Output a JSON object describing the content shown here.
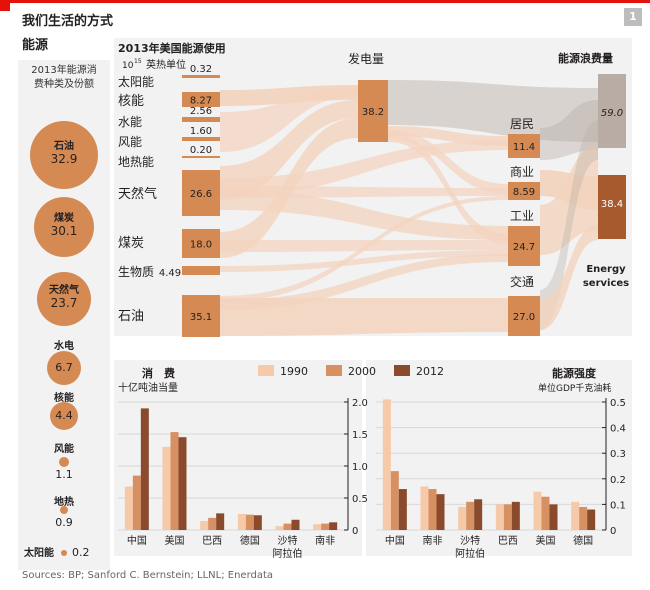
{
  "header": {
    "title_line1": "我们生活的方式",
    "title_line2": "能源",
    "page_number": "1"
  },
  "colors": {
    "accent_red": "#e3120b",
    "flow": "#f3d3bd",
    "box": "#d58a53",
    "year1990": "#f6c9a8",
    "year2000": "#d69062",
    "year2012": "#8a4a2c",
    "waste": "#b8aca4",
    "services": "#a65a2e"
  },
  "sidebar": {
    "heading_line1": "2013年能源消",
    "heading_line2": "费种类及份额",
    "items": [
      {
        "label": "石油",
        "value": "32.9"
      },
      {
        "label": "煤炭",
        "value": "30.1"
      },
      {
        "label": "天然气",
        "value": "23.7"
      },
      {
        "label": "水电",
        "value": "6.7"
      },
      {
        "label": "核能",
        "value": "4.4"
      },
      {
        "label": "风能",
        "value": "1.1"
      },
      {
        "label": "地热",
        "value": "0.9"
      },
      {
        "label": "太阳能",
        "value": "0.2"
      }
    ]
  },
  "sankey": {
    "title": "2013年美国能源使用",
    "unit_exp": "10",
    "unit_sup": "15",
    "unit_text": "英热单位",
    "sources": [
      {
        "label": "太阳能",
        "value": "0.32"
      },
      {
        "label": "核能",
        "value": "8.27"
      },
      {
        "label": "水能",
        "value": "2.56"
      },
      {
        "label": "风能",
        "value": "1.60"
      },
      {
        "label": "地热能",
        "value": "0.20"
      },
      {
        "label": "天然气",
        "value": "26.6"
      },
      {
        "label": "煤炭",
        "value": "18.0"
      },
      {
        "label": "生物质",
        "value": "4.49"
      },
      {
        "label": "石油",
        "value": "35.1"
      }
    ],
    "power_label": "发电量",
    "power_value": "38.2",
    "sectors": [
      {
        "label": "居民",
        "value": "11.4"
      },
      {
        "label": "商业",
        "value": "8.59"
      },
      {
        "label": "工业",
        "value": "24.7"
      },
      {
        "label": "交通",
        "value": "27.0"
      }
    ],
    "waste_label": "能源浪费量",
    "waste_value": "59.0",
    "services_value": "38.4",
    "services_label_1": "Energy",
    "services_label_2": "services"
  },
  "legend": [
    "1990",
    "2000",
    "2012"
  ],
  "chart_data": [
    {
      "type": "bar",
      "title": "消　费",
      "ylabel": "十亿吨油当量",
      "categories": [
        "中国",
        "美国",
        "巴西",
        "德国",
        "沙特阿拉伯",
        "南非"
      ],
      "category_lines": [
        [
          "中国"
        ],
        [
          "美国"
        ],
        [
          "巴西"
        ],
        [
          "德国"
        ],
        [
          "沙特",
          "阿拉伯"
        ],
        [
          "南非"
        ]
      ],
      "series": [
        {
          "name": "1990",
          "values": [
            0.68,
            1.3,
            0.14,
            0.25,
            0.06,
            0.09
          ]
        },
        {
          "name": "2000",
          "values": [
            0.85,
            1.53,
            0.19,
            0.24,
            0.1,
            0.1
          ]
        },
        {
          "name": "2012",
          "values": [
            1.9,
            1.45,
            0.26,
            0.23,
            0.16,
            0.12
          ]
        }
      ],
      "ylim": [
        0,
        2.0
      ],
      "yticks": [
        "0",
        "0.5",
        "1.0",
        "1.5",
        "2.0"
      ]
    },
    {
      "type": "bar",
      "title": "能源强度",
      "ylabel": "单位GDP千克油耗",
      "categories": [
        "中国",
        "南非",
        "沙特阿拉伯",
        "巴西",
        "美国",
        "德国"
      ],
      "category_lines": [
        [
          "中国"
        ],
        [
          "南非"
        ],
        [
          "沙特",
          "阿拉伯"
        ],
        [
          "巴西"
        ],
        [
          "美国"
        ],
        [
          "德国"
        ]
      ],
      "series": [
        {
          "name": "1990",
          "values": [
            0.51,
            0.17,
            0.09,
            0.1,
            0.15,
            0.11
          ]
        },
        {
          "name": "2000",
          "values": [
            0.23,
            0.16,
            0.11,
            0.1,
            0.13,
            0.09
          ]
        },
        {
          "name": "2012",
          "values": [
            0.16,
            0.14,
            0.12,
            0.11,
            0.1,
            0.08
          ]
        }
      ],
      "ylim": [
        0,
        0.5
      ],
      "yticks": [
        "0",
        "0.1",
        "0.2",
        "0.3",
        "0.4",
        "0.5"
      ]
    }
  ],
  "footer": {
    "sources": "Sources: BP; Sanford C. Bernstein; LLNL; Enerdata"
  }
}
